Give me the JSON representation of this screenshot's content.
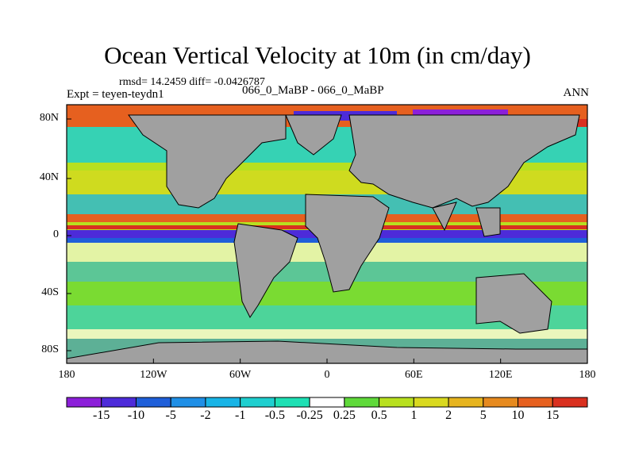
{
  "title": "Ocean Vertical Velocity at 10m (in cm/day)",
  "stats": "rmsd= 14.2459  diff= -0.0426787",
  "expt": "Expt = teyen-teydn1",
  "case": "066_0_MaBP - 066_0_MaBP",
  "season": "ANN",
  "lat_ticks": [
    "80N",
    "40N",
    "0",
    "40S",
    "80S"
  ],
  "lon_ticks": [
    "180",
    "120W",
    "60W",
    "0",
    "60E",
    "120E",
    "180"
  ],
  "colorbar": {
    "labels": [
      "-15",
      "-10",
      "-5",
      "-2",
      "-1",
      "-0.5",
      "-0.25",
      "0.25",
      "0.5",
      "1",
      "2",
      "5",
      "10",
      "15"
    ],
    "colors": [
      "#8c1fd9",
      "#4d2bd9",
      "#1f5fd9",
      "#1f8fe6",
      "#18b4e6",
      "#1fcfcf",
      "#1ee0b4",
      "#ffffff",
      "#5fd93a",
      "#b8e01f",
      "#d9d91f",
      "#e6b41f",
      "#e68a1f",
      "#e6601f",
      "#d9301f"
    ]
  },
  "land_color": "#a0a0a0"
}
